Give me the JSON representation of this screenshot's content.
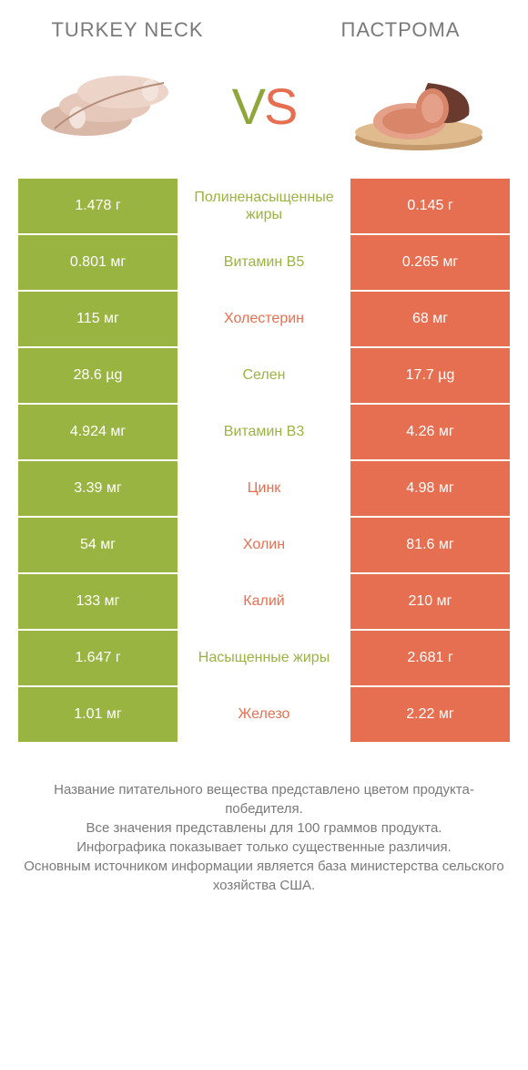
{
  "header": {
    "left": "TURKEY NECK",
    "right": "ПАСТРОМА",
    "vs_v": "V",
    "vs_s": "S"
  },
  "colors": {
    "green": "#99b441",
    "orange": "#e76f51",
    "text": "#7a7a7a",
    "white": "#ffffff"
  },
  "table": {
    "rows": [
      {
        "left": "1.478 г",
        "label": "Полиненасыщенные жиры",
        "right": "0.145 г",
        "winner": "left"
      },
      {
        "left": "0.801 мг",
        "label": "Витамин B5",
        "right": "0.265 мг",
        "winner": "left"
      },
      {
        "left": "115 мг",
        "label": "Холестерин",
        "right": "68 мг",
        "winner": "right"
      },
      {
        "left": "28.6 µg",
        "label": "Селен",
        "right": "17.7 µg",
        "winner": "left"
      },
      {
        "left": "4.924 мг",
        "label": "Витамин B3",
        "right": "4.26 мг",
        "winner": "left"
      },
      {
        "left": "3.39 мг",
        "label": "Цинк",
        "right": "4.98 мг",
        "winner": "right"
      },
      {
        "left": "54 мг",
        "label": "Холин",
        "right": "81.6 мг",
        "winner": "right"
      },
      {
        "left": "133 мг",
        "label": "Калий",
        "right": "210 мг",
        "winner": "right"
      },
      {
        "left": "1.647 г",
        "label": "Насыщенные жиры",
        "right": "2.681 г",
        "winner": "left"
      },
      {
        "left": "1.01 мг",
        "label": "Железо",
        "right": "2.22 мг",
        "winner": "right"
      }
    ]
  },
  "footer": {
    "line1": "Название питательного вещества представлено цветом продукта-победителя.",
    "line2": "Все значения представлены для 100 граммов продукта.",
    "line3": "Инфографика показывает только существенные различия.",
    "line4": "Основным источником информации является база министерства сельского хозяйства США."
  }
}
